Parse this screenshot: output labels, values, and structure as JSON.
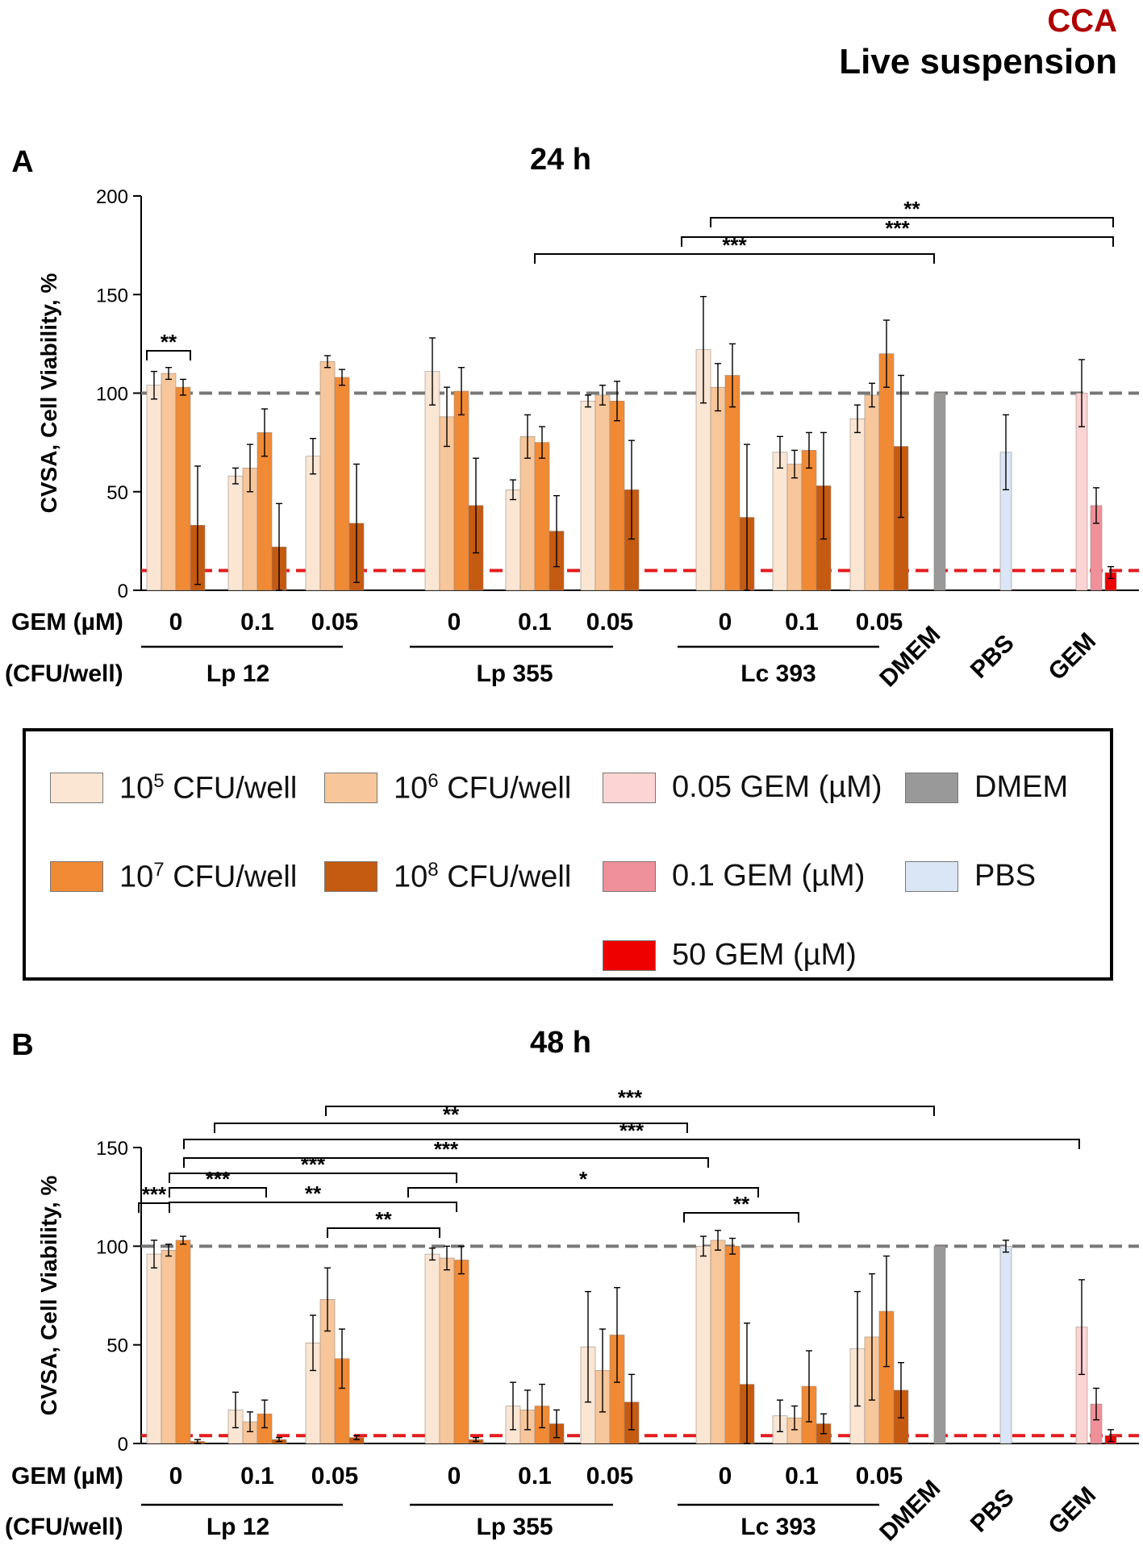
{
  "header": {
    "line1": "CCA",
    "line2": "Live suspension",
    "line1_color": "#b00000"
  },
  "legend": {
    "items": [
      {
        "base": "10",
        "sup": "5",
        "text": " CFU/well",
        "color": "#fbe6d4"
      },
      {
        "base": "10",
        "sup": "6",
        "text": " CFU/well",
        "color": "#f7c69a"
      },
      {
        "base": "",
        "sup": "",
        "text": "0.05 GEM (µM)",
        "color": "#fcd4d4"
      },
      {
        "base": "",
        "sup": "",
        "text": "DMEM",
        "color": "#999999"
      },
      {
        "base": "10",
        "sup": "7",
        "text": " CFU/well",
        "color": "#f08a34"
      },
      {
        "base": "10",
        "sup": "8",
        "text": " CFU/well",
        "color": "#c55a11"
      },
      {
        "base": "",
        "sup": "",
        "text": "0.1 GEM (µM)",
        "color": "#f0909a"
      },
      {
        "base": "",
        "sup": "",
        "text": "PBS",
        "color": "#dae6f5"
      },
      {
        "base": "",
        "sup": "",
        "text": "50 GEM (µM)",
        "color": "#ee0000"
      }
    ]
  },
  "chart_data": [
    {
      "type": "bar",
      "panel": "A",
      "title": "24 h",
      "ylabel": "CVSA, Cell Viability, %",
      "ylim": [
        0,
        200
      ],
      "yticks": [
        0,
        50,
        100,
        150,
        200
      ],
      "reference_lines": [
        {
          "y": 100,
          "color": "#777777"
        },
        {
          "y": 10,
          "color": "#e41a1c"
        }
      ],
      "row_labels": {
        "gem": "GEM (µM)",
        "cfu": "(CFU/well)"
      },
      "strains": [
        "Lp 12",
        "Lp 355",
        "Lc 393"
      ],
      "gem_levels": [
        "0",
        "0.1",
        "0.05"
      ],
      "controls": [
        "DMEM",
        "PBS",
        "GEM"
      ],
      "series_names": [
        "10^5 CFU/well",
        "10^6 CFU/well",
        "10^7 CFU/well",
        "10^8 CFU/well"
      ],
      "groups": [
        {
          "strain": "Lp 12",
          "gem": "0",
          "values": [
            104,
            110,
            103,
            33
          ],
          "errors": [
            7,
            3,
            4,
            30
          ]
        },
        {
          "strain": "Lp 12",
          "gem": "0.1",
          "values": [
            58,
            62,
            80,
            22
          ],
          "errors": [
            4,
            12,
            12,
            22
          ]
        },
        {
          "strain": "Lp 12",
          "gem": "0.05",
          "values": [
            68,
            116,
            108,
            34
          ],
          "errors": [
            9,
            3,
            4,
            30
          ]
        },
        {
          "strain": "Lp 355",
          "gem": "0",
          "values": [
            111,
            88,
            101,
            43
          ],
          "errors": [
            17,
            15,
            12,
            24
          ]
        },
        {
          "strain": "Lp 355",
          "gem": "0.1",
          "values": [
            51,
            78,
            75,
            30
          ],
          "errors": [
            5,
            11,
            8,
            18
          ]
        },
        {
          "strain": "Lp 355",
          "gem": "0.05",
          "values": [
            96,
            99,
            96,
            51
          ],
          "errors": [
            3,
            5,
            10,
            25
          ]
        },
        {
          "strain": "Lc 393",
          "gem": "0",
          "values": [
            122,
            103,
            109,
            37
          ],
          "errors": [
            27,
            12,
            16,
            37
          ]
        },
        {
          "strain": "Lc 393",
          "gem": "0.1",
          "values": [
            70,
            64,
            71,
            53
          ],
          "errors": [
            8,
            7,
            9,
            27
          ]
        },
        {
          "strain": "Lc 393",
          "gem": "0.05",
          "values": [
            87,
            99,
            120,
            73
          ],
          "errors": [
            7,
            6,
            17,
            36
          ]
        }
      ],
      "control_bars": [
        {
          "name": "DMEM",
          "values": [
            100
          ],
          "errors": [
            0
          ],
          "colors": [
            "#999999"
          ]
        },
        {
          "name": "PBS",
          "values": [
            70
          ],
          "errors": [
            19
          ],
          "colors": [
            "#dae6f5"
          ]
        },
        {
          "name": "GEM",
          "values": [
            100,
            43,
            9
          ],
          "errors": [
            17,
            9,
            3
          ],
          "colors": [
            "#fcd4d4",
            "#f0909a",
            "#ee0000"
          ]
        }
      ],
      "significance": [
        {
          "label": "**",
          "from": "Lp 12 | 0 | 10^5",
          "to": "Lp 12 | 0 | 10^8"
        },
        {
          "label": "***",
          "from": "Lp 355 | 0.1 | 10^8",
          "to": "DMEM"
        },
        {
          "label": "***",
          "from": "Lc 393 | 0 | 10^5",
          "to": "GEM"
        },
        {
          "label": "**",
          "from": "Lc 393 | 0 | 10^6",
          "to": "GEM"
        }
      ]
    },
    {
      "type": "bar",
      "panel": "B",
      "title": "48 h",
      "ylabel": "CVSA, Cell Viability, %",
      "ylim": [
        0,
        150
      ],
      "yticks": [
        0,
        50,
        100,
        150
      ],
      "reference_lines": [
        {
          "y": 100,
          "color": "#777777"
        },
        {
          "y": 4,
          "color": "#e41a1c"
        }
      ],
      "row_labels": {
        "gem": "GEM (µM)",
        "cfu": "(CFU/well)"
      },
      "strains": [
        "Lp 12",
        "Lp 355",
        "Lc 393"
      ],
      "gem_levels": [
        "0",
        "0.1",
        "0.05"
      ],
      "controls": [
        "DMEM",
        "PBS",
        "GEM"
      ],
      "series_names": [
        "10^5 CFU/well",
        "10^6 CFU/well",
        "10^7 CFU/well",
        "10^8 CFU/well"
      ],
      "groups": [
        {
          "strain": "Lp 12",
          "gem": "0",
          "values": [
            96,
            98,
            103,
            1
          ],
          "errors": [
            7,
            3,
            2,
            1
          ]
        },
        {
          "strain": "Lp 12",
          "gem": "0.1",
          "values": [
            17,
            11,
            15,
            2
          ],
          "errors": [
            9,
            5,
            7,
            1
          ]
        },
        {
          "strain": "Lp 12",
          "gem": "0.05",
          "values": [
            51,
            73,
            43,
            3
          ],
          "errors": [
            14,
            16,
            15,
            1
          ]
        },
        {
          "strain": "Lp 355",
          "gem": "0",
          "values": [
            96,
            94,
            93,
            2
          ],
          "errors": [
            3,
            6,
            7,
            1
          ]
        },
        {
          "strain": "Lp 355",
          "gem": "0.1",
          "values": [
            19,
            17,
            19,
            10
          ],
          "errors": [
            12,
            10,
            11,
            7
          ]
        },
        {
          "strain": "Lp 355",
          "gem": "0.05",
          "values": [
            49,
            37,
            55,
            21
          ],
          "errors": [
            28,
            21,
            24,
            14
          ]
        },
        {
          "strain": "Lc 393",
          "gem": "0",
          "values": [
            100,
            103,
            100,
            30
          ],
          "errors": [
            5,
            5,
            4,
            31
          ]
        },
        {
          "strain": "Lc 393",
          "gem": "0.1",
          "values": [
            14,
            13,
            29,
            10
          ],
          "errors": [
            8,
            6,
            18,
            5
          ]
        },
        {
          "strain": "Lc 393",
          "gem": "0.05",
          "values": [
            48,
            54,
            67,
            27
          ],
          "errors": [
            29,
            32,
            28,
            14
          ]
        }
      ],
      "control_bars": [
        {
          "name": "DMEM",
          "values": [
            100
          ],
          "errors": [
            0
          ],
          "colors": [
            "#999999"
          ]
        },
        {
          "name": "PBS",
          "values": [
            100
          ],
          "errors": [
            3
          ],
          "colors": [
            "#dae6f5"
          ]
        },
        {
          "name": "GEM",
          "values": [
            59,
            20,
            4
          ],
          "errors": [
            24,
            8,
            3
          ],
          "colors": [
            "#fcd4d4",
            "#f0909a",
            "#ee0000"
          ]
        }
      ],
      "significance": [
        {
          "label": "***",
          "from": "Lp 12 | 0 | 10^5",
          "to": "Lp 12 | 0 | 10^7"
        },
        {
          "label": "***",
          "from": "Lp 12 | 0 | 10^6",
          "to": "Lp 12 | 0.1"
        },
        {
          "label": "**",
          "from": "Lp 12 | 0 | 10^6",
          "to": "Lp 355 | 0 | 10^8"
        },
        {
          "label": "**",
          "from": "Lp 12 | 0.05",
          "to": "Lp 355 | 0 | 10^6"
        },
        {
          "label": "*",
          "from": "Lp 355 | 0 | 10^6",
          "to": "Lc 393 | 0 | 10^8"
        },
        {
          "label": "**",
          "from": "Lc 393 | 0 | 10^5",
          "to": "Lc 393 | 0.1"
        },
        {
          "label": "***",
          "from": "Lp 12 | 0 | 10^7",
          "to": "Lp 355 | 0 | 10^8"
        },
        {
          "label": "***",
          "from": "Lp 12 | 0 | 10^7",
          "to": "Lc 393 | 0 | 10^6"
        },
        {
          "label": "***",
          "from": "Lp 12 | 0 | 10^7",
          "to": "GEM"
        },
        {
          "label": "**",
          "from": "Lp 12 | 0 | 10^8",
          "to": "Lc 393 | 0 | 10^5"
        },
        {
          "label": "***",
          "from": "Lp 12 | 0.1",
          "to": "DMEM"
        }
      ]
    }
  ]
}
